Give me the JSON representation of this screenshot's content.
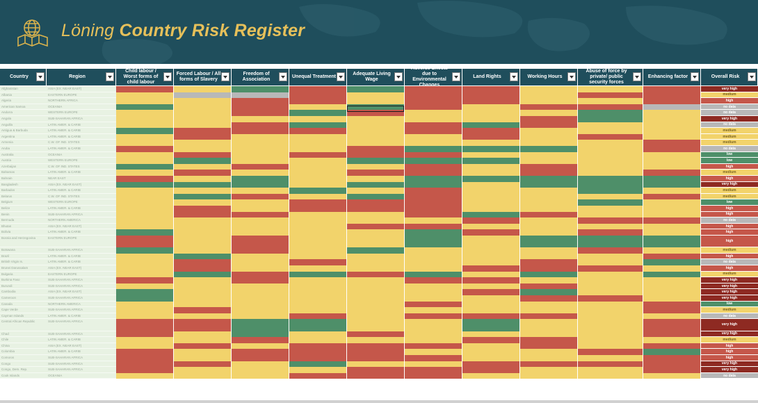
{
  "app": {
    "brand": "Löning",
    "title": "Country Risk Register"
  },
  "colors": {
    "banner": "#1f4e5c",
    "title": "#e6c05a",
    "red": "#c5574a",
    "yellow": "#f2d36b",
    "green": "#4e8f69",
    "gray": "#b8b8b8",
    "darkred": "#8e2a22"
  },
  "icons": [
    "globe-map-icon",
    "dropdown-arrow-icon"
  ],
  "headers": [
    "Country",
    "Region",
    "Child labour / Worst forms of child labour",
    "Forced Labour / All forms of Slavery",
    "Freedom of Association",
    "Unequal Treatment",
    "Adequate Living Wage",
    "Adverse Effects due to Environmental Changes",
    "Land Rights",
    "Working Hours",
    "Abuse of force by private/ public security forces",
    "Enhancing factor",
    "Overall Risk"
  ],
  "grid_codes": "RYGRGRRYYRYDDRYRRYRRYYRRYRRYYRGYRYGRYRRDYYRGRYYYGYYYYYYYYRGYYYRGYRGRYYGRRRYRRYYYYRYYYYRYRYYYYYYYYYYRRYYYRGGGYRYRYRRRYYYYYGYYGGGYYYGYRYYRYRYYYRYYRRYRYRRYGYYGGGGGGGGYGGYGGGYYYGYRYYGYYGRYGRYYYRYYYRRRYYGYYRYRRRYYYYYRRYYRGRYYYYYYYYRYRRYYYYRRYYYYGYYYYGRYRYRYRYYGYGGGGYRYGYYYRYYGYYYYYYYRYRYRYYYRYGYRYYYYRRRYYGRGRGYGYGRYRYYRRYYYYYYYYYYRYYGYYYYYRGYYGYYYYYYRRYYYYYYRYYYRYRYYYYYYYRYYYRYRRRYYRRGGYYGYYRRYGYRYYYYRYYRYYYRRYYYRYRRRYRYRRYRRRYYYRGRYRRRRYYYRRRYGYYRRRRRYYYRRRYYRYYYRRRYYYYRRGYYGYRYRRYRYYRRYRYYYRRRRYRRYRRYYYRRYRYRRRYYRYYYYYYYGRYRRRRYYYRRRYRYRRYYRRRYRYRYRYYYRRRGRYRRRRRRYYYYRRYRYYRRRRRRYRYRRYYRYYYRYYRYYRRRYRRRRRRRRRYYRRRRRRRYYRGRRRGYYRRRGRRRRRRYYRRRYYYRRYRYRYRRYYYYGRRYYRRRYRRRYYYRYRRYYYYRRGGRRRRRRYRRRGYYRYRGYYRYYRYYRYRYYRRRRGYYYYYYYRRYYRYRRRYYGRRYYYYRRRYRYRRRRRYYRGYYRYRRRGYYYYGYRRYRRGYRYRYYYRRYRRRYYRRYRRRYYRYRRRRRRYRYYRYRGYRYRRRRYRRYRYRYYRRYGRRRRYRRGYYRRRRYYYYYRRRYRRYRYRRYRYYRRRYRYYYYRRRRRRYYYRYRRYYYYYYRYYYRRYRYRRRRYYYYYRRYRRRRYYRYYYYYYRYYYYYYYRRRYRRRYYRRYRRYYRYRRGYYRYYYRYYYYYYYYYYYRRYYGYRYYYYRRYYYRRYRYYYYYYRRYYRRGYYRYYYYRRGYYYYYYRRYYRRRYGRRRRRYYRYYRRYYYRYYYYYYYRYRYYRRYRRYYRYRYYRYRYYYYRRRRRRYYRRRYYRYGRRRRYYYRRRRRYYRRGRRRRRYYYYYRRRYYYYRRYRYGRYGYYYRRRGRYYYYRRRYGYYRGYYYYRRRGRRRRRRYYRRRGYYGYRRRYYRRRYRRYYRYRRGRRRRRYYRYYYRRRRYRGYYYYRRYRRRYYYRYYYRYRRRYYYYGRRYYYYRRYYRYYRYYRYRRYYGRRYRRYYYRRGRYRRYYRRYRRRYYYYYYRRRRRRYRRRRRYYRRYRRRGGYYRYYRRRRRGYYYRYYYYRYYYYYRRRRYYRRRRRRRYGRRYRYRYRYYYRYRYYYYYRRYYRYRYRRRRRRYYRRYYYRRYRRYRGYRYYYRYYYRYYYYRRRGYYRYRRYYYRRGYYRRRRRYYYRRRGYYYYRRYYRYRRRYRRYRYYRRYYYRYYYYRRRRRYYRRGYRRGGYYYGYRYYRRGGGGGGGGYGGGYYYYRYYYYYGGYYYRGGGYRRRGGYGYGYRYYYYRYYRYYGRRYYRGRRYYYRRYRRYYRRYYYRYYYYYRRYYRYYRYYYYYYRRYYRYRRYYGYYRRYRYRRYYYYYYYRRYRRRYYYRRGRYYRYRYYYYRRRRRRRRRYYYYYRYYRYRRRRRYYYYRYYYYYYYRYYRYRYRYYYYRRRRYRYRYRRRYYYRYYYYYRRYRYYRYYYYRYYRRRYYRRRRRYRYYRYRRRYYYYRYYRYRYYYRRYRRYYRYYRRRYYRRRYYYRRRRYRRGGGGGGGGGGGGGGGGGGGGGGGGGGGYRYRRRRYYYYYYYRRYYRRYRRRYRRYRYRYYRYRRYRRYYRRYRYRRYRRRYRYRRYRRRRRRRYRYYRRYRRRRRRYRRYRRYYRRYRRYRRYRRRYYRYYYYRRRRRRRRYYYRRGYRRRRYYRRYRRYYYRRRRYYRYRRRRRYYRRYRYRRRYYYRRRYYYRRYYRYYRRRRRYYYYRRYYRYRRRYYYRRGRRRYRRRYYYYRRRRYYRRRRRRRRRRRRRRRRRRRRRRRRRRRRRRRRR",
  "rows": [
    {
      "country": "Afghanistan",
      "region": "ASIA (EX. NEAR EAST)",
      "risk": "very high"
    },
    {
      "country": "Albania",
      "region": "EASTERN EUROPE",
      "risk": "medium"
    },
    {
      "country": "Algeria",
      "region": "NORTHERN AFRICA",
      "risk": "high"
    },
    {
      "country": "American Samoa",
      "region": "OCEANIA",
      "risk": "no data"
    },
    {
      "country": "Andorra",
      "region": "WESTERN EUROPE",
      "risk": "no data"
    },
    {
      "country": "Angola",
      "region": "SUB-SAHARAN AFRICA",
      "risk": "very high"
    },
    {
      "country": "Anguilla",
      "region": "LATIN AMER. & CARIB",
      "risk": "no data"
    },
    {
      "country": "Antigua & Barbuda",
      "region": "LATIN AMER. & CARIB",
      "risk": "medium"
    },
    {
      "country": "Argentina",
      "region": "LATIN AMER. & CARIB",
      "risk": "medium"
    },
    {
      "country": "Armenia",
      "region": "C.W. OF IND. STATES",
      "risk": "medium"
    },
    {
      "country": "Aruba",
      "region": "LATIN AMER. & CARIB",
      "risk": "no data"
    },
    {
      "country": "Australia",
      "region": "OCEANIA",
      "risk": "low"
    },
    {
      "country": "Austria",
      "region": "WESTERN EUROPE",
      "risk": "low"
    },
    {
      "country": "Azerbaijan",
      "region": "C.W. OF IND. STATES",
      "risk": "high"
    },
    {
      "country": "Bahamas",
      "region": "LATIN AMER. & CARIB",
      "risk": "medium"
    },
    {
      "country": "Bahrain",
      "region": "NEAR EAST",
      "risk": "high"
    },
    {
      "country": "Bangladesh",
      "region": "ASIA (EX. NEAR EAST)",
      "risk": "very high"
    },
    {
      "country": "Barbados",
      "region": "LATIN AMER. & CARIB",
      "risk": "medium"
    },
    {
      "country": "Belarus",
      "region": "C.W. OF IND. STATES",
      "risk": "medium"
    },
    {
      "country": "Belgium",
      "region": "WESTERN EUROPE",
      "risk": "low"
    },
    {
      "country": "Belize",
      "region": "LATIN AMER. & CARIB",
      "risk": "high"
    },
    {
      "country": "Benin",
      "region": "SUB-SAHARAN AFRICA",
      "risk": "high"
    },
    {
      "country": "Bermuda",
      "region": "NORTHERN AMERICA",
      "risk": "no data"
    },
    {
      "country": "Bhutan",
      "region": "ASIA (EX. NEAR EAST)",
      "risk": "high"
    },
    {
      "country": "Bolivia",
      "region": "LATIN AMER. & CARIB",
      "risk": "high"
    },
    {
      "country": "Bosnia and Herzegovina",
      "region": "EASTERN EUROPE",
      "risk": "high",
      "tall": true
    },
    {
      "country": "Botswana",
      "region": "SUB-SAHARAN AFRICA",
      "risk": "medium"
    },
    {
      "country": "Brazil",
      "region": "LATIN AMER. & CARIB",
      "risk": "high"
    },
    {
      "country": "British Virgin Is.",
      "region": "LATIN AMER. & CARIB",
      "risk": "no data"
    },
    {
      "country": "Brunei Darussalam",
      "region": "ASIA (EX. NEAR EAST)",
      "risk": "high"
    },
    {
      "country": "Bulgaria",
      "region": "EASTERN EUROPE",
      "risk": "medium"
    },
    {
      "country": "Burkina Faso",
      "region": "SUB-SAHARAN AFRICA",
      "risk": "very high"
    },
    {
      "country": "Burundi",
      "region": "SUB-SAHARAN AFRICA",
      "risk": "very high"
    },
    {
      "country": "Cambodia",
      "region": "ASIA (EX. NEAR EAST)",
      "risk": "very high"
    },
    {
      "country": "Cameroon",
      "region": "SUB-SAHARAN AFRICA",
      "risk": "very high"
    },
    {
      "country": "Canada",
      "region": "NORTHERN AMERICA",
      "risk": "low"
    },
    {
      "country": "Cape Verde",
      "region": "SUB-SAHARAN AFRICA",
      "risk": "medium"
    },
    {
      "country": "Cayman Islands",
      "region": "LATIN AMER. & CARIB",
      "risk": "no data"
    },
    {
      "country": "Central African Republic",
      "region": "SUB-SAHARAN AFRICA",
      "risk": "very high",
      "tall": true
    },
    {
      "country": "Chad",
      "region": "SUB-SAHARAN AFRICA",
      "risk": "very high"
    },
    {
      "country": "Chile",
      "region": "LATIN AMER. & CARIB",
      "risk": "medium"
    },
    {
      "country": "China",
      "region": "ASIA (EX. NEAR EAST)",
      "risk": "high"
    },
    {
      "country": "Colombia",
      "region": "LATIN AMER. & CARIB",
      "risk": "high"
    },
    {
      "country": "Comoros",
      "region": "SUB-SAHARAN AFRICA",
      "risk": "high"
    },
    {
      "country": "Congo",
      "region": "SUB-SAHARAN AFRICA",
      "risk": "very high"
    },
    {
      "country": "Congo, Dem. Rep.",
      "region": "SUB-SAHARAN AFRICA",
      "risk": "very high"
    },
    {
      "country": "Cook Islands",
      "region": "OCEANIA",
      "risk": "no data"
    }
  ]
}
